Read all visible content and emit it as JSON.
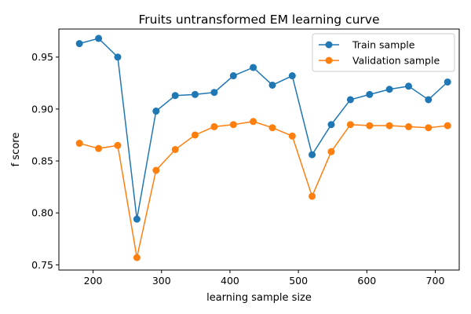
{
  "chart_data": {
    "type": "line",
    "title": "Fruits untransformed EM learning curve",
    "xlabel": "learning sample size",
    "ylabel": "f score",
    "xlim": [
      150,
      735
    ],
    "ylim": [
      0.745,
      0.977
    ],
    "xticks": [
      200,
      300,
      400,
      500,
      600,
      700
    ],
    "yticks": [
      0.75,
      0.8,
      0.85,
      0.9,
      0.95
    ],
    "xtick_labels": [
      "200",
      "300",
      "400",
      "500",
      "600",
      "700"
    ],
    "ytick_labels": [
      "0.75",
      "0.80",
      "0.85",
      "0.90",
      "0.95"
    ],
    "grid": false,
    "legend_position": "top-right",
    "x": [
      180,
      208,
      236,
      264,
      292,
      320,
      349,
      377,
      405,
      434,
      462,
      491,
      520,
      548,
      576,
      604,
      633,
      661,
      690,
      718
    ],
    "series": [
      {
        "name": "Train sample",
        "color": "#1f77b4",
        "values": [
          0.963,
          0.968,
          0.95,
          0.794,
          0.898,
          0.913,
          0.914,
          0.916,
          0.932,
          0.94,
          0.923,
          0.932,
          0.856,
          0.885,
          0.909,
          0.914,
          0.919,
          0.922,
          0.909,
          0.926
        ]
      },
      {
        "name": "Validation sample",
        "color": "#ff7f0e",
        "values": [
          0.867,
          0.862,
          0.865,
          0.757,
          0.841,
          0.861,
          0.875,
          0.883,
          0.885,
          0.888,
          0.882,
          0.874,
          0.816,
          0.859,
          0.885,
          0.884,
          0.884,
          0.883,
          0.882,
          0.884
        ]
      }
    ]
  }
}
